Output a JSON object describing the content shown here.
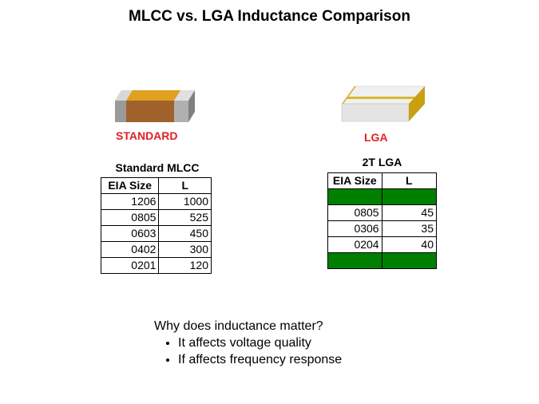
{
  "title": "MLCC vs. LGA Inductance Comparison",
  "standard": {
    "label": "STANDARD",
    "table_title": "Standard MLCC",
    "header": [
      "EIA Size",
      "L"
    ],
    "rows": [
      [
        "1206",
        1000
      ],
      [
        "0805",
        525
      ],
      [
        "0603",
        450
      ],
      [
        "0402",
        300
      ],
      [
        "0201",
        120
      ]
    ]
  },
  "lga": {
    "label": "LGA",
    "table_title": "2T LGA",
    "header": [
      "EIA Size",
      "L"
    ],
    "rows": [
      [
        "0805",
        45
      ],
      [
        "0306",
        35
      ],
      [
        "0204",
        40
      ]
    ]
  },
  "notes": {
    "question": "Why does inductance matter?",
    "bullets": [
      "It affects voltage quality",
      "If affects frequency response"
    ]
  }
}
